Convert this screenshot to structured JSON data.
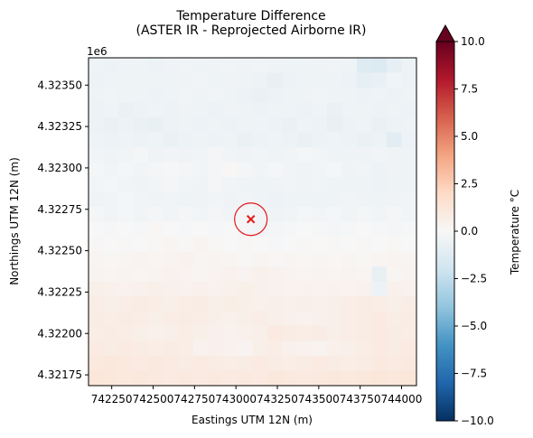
{
  "chart_data": {
    "type": "heatmap",
    "title_line1": "Temperature Difference",
    "title_line2": "(ASTER IR - Reprojected Airborne IR)",
    "xlabel": "Eastings UTM 12N (m)",
    "ylabel": "Northings UTM 12N (m)",
    "y_offset_label": "1e6",
    "xlim": [
      742110,
      744090
    ],
    "ylim": [
      4321685,
      4323665
    ],
    "x_ticks": [
      742250,
      742500,
      742750,
      743000,
      743250,
      743500,
      743750,
      744000
    ],
    "x_tick_labels": [
      "742250",
      "742500",
      "742750",
      "743000",
      "743250",
      "743500",
      "743750",
      "744000"
    ],
    "y_ticks": [
      4321750,
      4322000,
      4322250,
      4322500,
      4322750,
      4323000,
      4323250,
      4323500
    ],
    "y_tick_labels": [
      "4.32175",
      "4.32200",
      "4.32225",
      "4.32250",
      "4.32275",
      "4.32300",
      "4.32325",
      "4.32350"
    ],
    "grid": false,
    "grid_dims": [
      22,
      22
    ],
    "marker": {
      "x": 743090,
      "y": 4322690,
      "symbol": "x",
      "color": "#e41a1c",
      "circle": true
    },
    "colorbar": {
      "label": "Temperature °C",
      "colormap": "RdBu_r",
      "range": [
        -10,
        10
      ],
      "extend": "max",
      "ticks": [
        10.0,
        7.5,
        5.0,
        2.5,
        0.0,
        -2.5,
        -5.0,
        -7.5,
        -10.0
      ],
      "tick_labels": [
        "10.0",
        "7.5",
        "5.0",
        "2.5",
        "0.0",
        "−2.5",
        "−5.0",
        "−7.5",
        "−10.0"
      ]
    },
    "values": [
      [
        -0.5,
        -0.6,
        -0.4,
        -0.5,
        -0.6,
        -0.4,
        -0.3,
        -0.5,
        -0.4,
        -0.3,
        -0.4,
        -0.3,
        -0.4,
        -0.5,
        -0.5,
        -0.4,
        -0.3,
        -0.5,
        -1.3,
        -1.4,
        -0.9,
        -0.6
      ],
      [
        -0.6,
        -0.5,
        -0.4,
        -0.5,
        -0.4,
        -0.5,
        -0.4,
        -0.3,
        -0.5,
        -0.4,
        -0.5,
        -0.6,
        -0.8,
        -0.6,
        -0.4,
        -0.5,
        -0.4,
        -0.6,
        -0.9,
        -0.7,
        -0.3,
        -0.6
      ],
      [
        -0.5,
        -0.3,
        -0.5,
        -0.4,
        -0.6,
        -0.5,
        -0.3,
        -0.4,
        -0.3,
        -0.5,
        -0.6,
        -0.7,
        -0.6,
        -0.5,
        -0.4,
        -0.3,
        -0.5,
        -0.4,
        -0.6,
        -0.5,
        -0.6,
        -0.5
      ],
      [
        -0.6,
        -0.5,
        -0.7,
        -0.6,
        -0.5,
        -0.6,
        -0.4,
        -0.5,
        -0.6,
        -0.4,
        -0.5,
        -0.6,
        -0.5,
        -0.4,
        -0.6,
        -0.5,
        -0.7,
        -0.5,
        -0.4,
        -0.6,
        -0.5,
        -0.6
      ],
      [
        -0.6,
        -0.7,
        -0.6,
        -0.7,
        -0.8,
        -0.6,
        -0.5,
        -0.6,
        -0.5,
        -0.6,
        -0.5,
        -0.4,
        -0.6,
        -0.7,
        -0.5,
        -0.6,
        -0.8,
        -0.6,
        -0.5,
        -0.7,
        -0.6,
        -0.5
      ],
      [
        -0.5,
        -0.6,
        -0.5,
        -0.6,
        -0.5,
        -0.7,
        -0.6,
        -0.5,
        -0.6,
        -0.5,
        -0.7,
        -0.6,
        -0.5,
        -0.6,
        -0.7,
        -0.6,
        -0.5,
        -0.6,
        -0.7,
        -0.6,
        -1.1,
        -0.6
      ],
      [
        -0.3,
        -0.4,
        -0.3,
        -0.2,
        -0.4,
        -0.3,
        -0.4,
        -0.3,
        -0.2,
        -0.3,
        -0.4,
        -0.3,
        -0.4,
        -0.3,
        -0.2,
        -0.3,
        -0.4,
        -0.5,
        -0.4,
        -0.3,
        -0.4,
        -0.5
      ],
      [
        -0.2,
        -0.3,
        -0.2,
        -0.3,
        -0.2,
        -0.1,
        -0.2,
        -0.3,
        -0.2,
        0.1,
        -0.2,
        -0.3,
        -0.2,
        -0.3,
        -0.4,
        -0.3,
        -0.2,
        -0.4,
        -0.3,
        -0.6,
        -0.4,
        -0.5
      ],
      [
        -0.3,
        -0.2,
        -0.3,
        -0.4,
        -0.3,
        -0.2,
        -0.3,
        -0.4,
        -0.2,
        -0.3,
        -0.4,
        -0.5,
        -0.4,
        -0.3,
        -0.4,
        -0.3,
        -0.5,
        -0.4,
        -0.5,
        -0.6,
        -0.5,
        -0.4
      ],
      [
        -0.4,
        -0.3,
        -0.2,
        -0.3,
        -0.4,
        -0.3,
        -0.5,
        -0.4,
        -0.3,
        -0.4,
        -0.3,
        -0.4,
        -0.6,
        -0.5,
        -0.4,
        -0.5,
        -0.4,
        -0.3,
        -0.4,
        -0.5,
        -0.4,
        -0.3
      ],
      [
        -0.2,
        -0.3,
        -0.2,
        -0.3,
        -0.2,
        -0.3,
        -0.2,
        -0.3,
        -0.2,
        -0.3,
        -0.2,
        -0.3,
        -0.4,
        -0.3,
        -0.2,
        -0.3,
        -0.2,
        -0.3,
        -0.2,
        -0.3,
        -0.2,
        -0.3
      ],
      [
        0.0,
        -0.1,
        0.0,
        -0.1,
        0.1,
        0.0,
        -0.1,
        0.0,
        -0.1,
        0.0,
        -0.2,
        -0.3,
        -0.2,
        -0.1,
        0.0,
        -0.1,
        -0.2,
        -0.1,
        0.0,
        -0.1,
        -0.2,
        -0.1
      ],
      [
        0.1,
        0.0,
        0.1,
        0.0,
        0.1,
        0.2,
        0.1,
        0.3,
        0.1,
        0.0,
        0.1,
        0.0,
        -0.1,
        0.0,
        0.1,
        0.0,
        0.1,
        0.0,
        0.1,
        0.0,
        0.1,
        0.0
      ],
      [
        0.2,
        0.1,
        0.2,
        0.3,
        0.2,
        0.3,
        0.4,
        0.2,
        0.3,
        0.2,
        0.1,
        0.2,
        0.1,
        0.2,
        0.1,
        0.2,
        0.1,
        0.2,
        0.1,
        0.2,
        0.3,
        0.2
      ],
      [
        0.3,
        0.2,
        0.3,
        0.2,
        0.3,
        0.4,
        0.3,
        0.2,
        0.3,
        0.4,
        0.3,
        0.5,
        0.4,
        0.3,
        0.2,
        0.3,
        0.2,
        0.3,
        0.2,
        -0.8,
        0.2,
        0.3
      ],
      [
        0.6,
        0.5,
        0.4,
        0.5,
        0.6,
        0.5,
        0.4,
        0.5,
        0.4,
        0.5,
        0.6,
        0.5,
        0.4,
        0.3,
        0.4,
        0.3,
        0.4,
        0.3,
        0.4,
        -0.6,
        0.5,
        0.4
      ],
      [
        0.7,
        0.6,
        0.7,
        0.8,
        0.7,
        0.6,
        0.7,
        0.8,
        0.6,
        0.7,
        0.6,
        0.5,
        0.6,
        0.5,
        0.6,
        0.5,
        0.6,
        0.7,
        0.8,
        0.7,
        0.6,
        0.7
      ],
      [
        0.8,
        0.7,
        0.8,
        0.7,
        0.6,
        0.7,
        0.8,
        0.7,
        0.6,
        0.5,
        0.6,
        0.7,
        0.6,
        0.5,
        0.4,
        0.5,
        0.6,
        0.7,
        0.8,
        0.9,
        0.7,
        0.8
      ],
      [
        0.7,
        0.8,
        0.7,
        0.6,
        0.5,
        0.6,
        0.7,
        0.6,
        0.5,
        0.4,
        0.5,
        0.6,
        0.9,
        0.8,
        0.7,
        0.8,
        0.6,
        0.7,
        0.8,
        0.9,
        0.8,
        0.7
      ],
      [
        0.9,
        0.8,
        0.9,
        0.8,
        0.7,
        0.8,
        0.7,
        0.4,
        0.5,
        0.4,
        0.3,
        0.6,
        0.7,
        0.5,
        0.4,
        0.3,
        0.5,
        0.6,
        0.7,
        0.9,
        0.8,
        0.9
      ],
      [
        1.0,
        1.1,
        1.0,
        0.9,
        1.0,
        0.9,
        0.8,
        0.9,
        0.8,
        0.7,
        0.8,
        0.9,
        0.8,
        0.7,
        0.8,
        0.9,
        0.8,
        0.7,
        0.8,
        1.0,
        0.9,
        1.0
      ],
      [
        1.2,
        1.1,
        1.0,
        1.1,
        1.0,
        0.9,
        1.0,
        0.9,
        1.0,
        0.9,
        1.0,
        0.9,
        1.1,
        1.0,
        0.9,
        1.0,
        1.1,
        1.0,
        1.1,
        1.2,
        1.1,
        1.2
      ]
    ]
  }
}
